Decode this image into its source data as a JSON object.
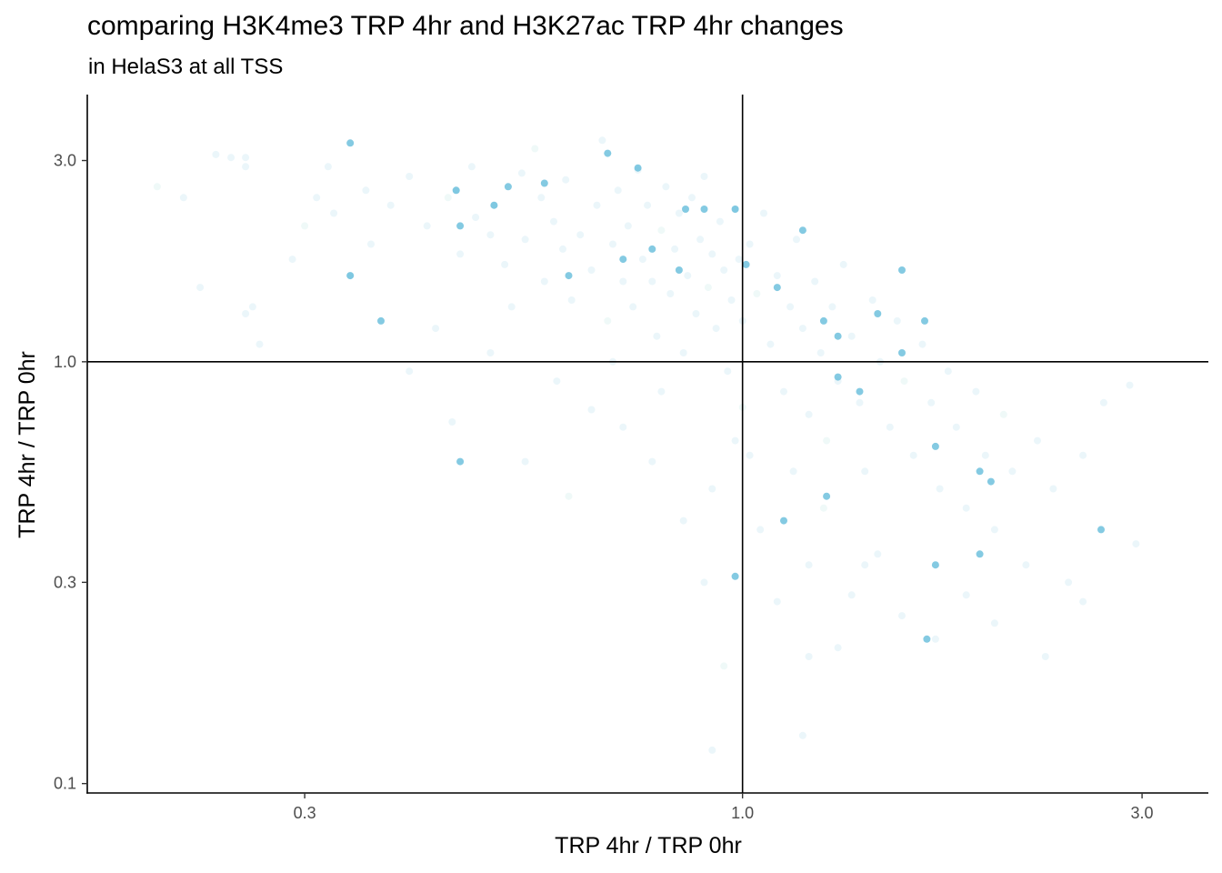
{
  "chart_data": {
    "type": "scatter",
    "title": "comparing H3K4me3 TRP 4hr and H3K27ac TRP 4hr changes",
    "subtitle": "in HelaS3 at all TSS",
    "xlabel": "TRP 4hr / TRP 0hr",
    "ylabel": "TRP 4hr / TRP 0hr",
    "x_scale": "log10",
    "y_scale": "log10",
    "xlim": [
      0.165,
      3.6
    ],
    "ylim": [
      0.095,
      4.3
    ],
    "x_ticks": [
      {
        "value": 0.3,
        "label": "0.3"
      },
      {
        "value": 1.0,
        "label": "1.0"
      },
      {
        "value": 3.0,
        "label": "3.0"
      }
    ],
    "y_ticks": [
      {
        "value": 0.1,
        "label": "0.1"
      },
      {
        "value": 0.3,
        "label": "0.3"
      },
      {
        "value": 1.0,
        "label": "1.0"
      },
      {
        "value": 3.0,
        "label": "3.0"
      }
    ],
    "reference_lines": {
      "x": 1.0,
      "y": 1.0
    },
    "point_color": "#5bb8d8",
    "point_color_alt": "#7fcfc4",
    "point_opacity": 0.12,
    "grid": false,
    "highlighted_points": [
      [
        0.69,
        3.12
      ],
      [
        0.75,
        2.88
      ],
      [
        0.855,
        2.3
      ],
      [
        0.9,
        2.3
      ],
      [
        0.98,
        2.3
      ],
      [
        0.46,
        2.1
      ],
      [
        0.525,
        2.6
      ],
      [
        1.18,
        2.05
      ],
      [
        0.78,
        1.85
      ],
      [
        0.72,
        1.75
      ],
      [
        0.84,
        1.65
      ],
      [
        1.01,
        1.7
      ],
      [
        1.1,
        1.5
      ],
      [
        1.55,
        1.65
      ],
      [
        1.45,
        1.3
      ],
      [
        1.65,
        1.25
      ],
      [
        1.25,
        1.25
      ],
      [
        1.3,
        1.15
      ],
      [
        1.55,
        1.05
      ],
      [
        1.3,
        0.92
      ],
      [
        1.38,
        0.85
      ],
      [
        0.37,
        1.25
      ],
      [
        1.7,
        0.63
      ],
      [
        1.98,
        0.52
      ],
      [
        1.12,
        0.42
      ],
      [
        1.7,
        0.33
      ],
      [
        1.92,
        0.35
      ],
      [
        1.92,
        0.55
      ],
      [
        0.34,
        1.6
      ],
      [
        0.455,
        2.55
      ],
      [
        0.58,
        2.65
      ],
      [
        0.62,
        1.6
      ],
      [
        0.505,
        2.35
      ],
      [
        0.46,
        0.58
      ],
      [
        1.26,
        0.48
      ],
      [
        0.98,
        0.31
      ],
      [
        2.68,
        0.4
      ],
      [
        1.66,
        0.22
      ],
      [
        0.34,
        3.3
      ]
    ],
    "points": [
      [
        0.2,
        2.6
      ],
      [
        0.215,
        2.45
      ],
      [
        0.235,
        3.1
      ],
      [
        0.245,
        3.05
      ],
      [
        0.255,
        2.9
      ],
      [
        0.26,
        1.35
      ],
      [
        0.255,
        3.05
      ],
      [
        0.265,
        1.1
      ],
      [
        0.255,
        1.3
      ],
      [
        0.225,
        1.5
      ],
      [
        0.29,
        1.75
      ],
      [
        0.3,
        2.1
      ],
      [
        0.31,
        2.45
      ],
      [
        0.32,
        2.9
      ],
      [
        0.325,
        2.25
      ],
      [
        0.34,
        1.6
      ],
      [
        0.355,
        2.55
      ],
      [
        0.36,
        1.9
      ],
      [
        0.38,
        2.35
      ],
      [
        0.4,
        2.75
      ],
      [
        0.42,
        2.1
      ],
      [
        0.43,
        1.2
      ],
      [
        0.445,
        2.45
      ],
      [
        0.455,
        2.55
      ],
      [
        0.46,
        1.8
      ],
      [
        0.475,
        2.9
      ],
      [
        0.48,
        2.2
      ],
      [
        0.5,
        2.0
      ],
      [
        0.505,
        2.35
      ],
      [
        0.52,
        1.7
      ],
      [
        0.53,
        1.35
      ],
      [
        0.545,
        2.8
      ],
      [
        0.55,
        1.95
      ],
      [
        0.565,
        3.2
      ],
      [
        0.575,
        2.45
      ],
      [
        0.58,
        1.55
      ],
      [
        0.595,
        2.15
      ],
      [
        0.61,
        1.85
      ],
      [
        0.615,
        2.7
      ],
      [
        0.625,
        1.4
      ],
      [
        0.64,
        2.0
      ],
      [
        0.66,
        1.65
      ],
      [
        0.67,
        2.35
      ],
      [
        0.68,
        3.35
      ],
      [
        0.69,
        1.25
      ],
      [
        0.7,
        1.9
      ],
      [
        0.71,
        2.55
      ],
      [
        0.72,
        1.55
      ],
      [
        0.73,
        2.1
      ],
      [
        0.74,
        1.35
      ],
      [
        0.75,
        2.85
      ],
      [
        0.76,
        1.75
      ],
      [
        0.77,
        2.35
      ],
      [
        0.78,
        1.55
      ],
      [
        0.79,
        1.15
      ],
      [
        0.8,
        2.05
      ],
      [
        0.81,
        2.6
      ],
      [
        0.82,
        1.45
      ],
      [
        0.83,
        1.85
      ],
      [
        0.84,
        2.25
      ],
      [
        0.85,
        1.05
      ],
      [
        0.86,
        1.6
      ],
      [
        0.87,
        2.45
      ],
      [
        0.88,
        1.3
      ],
      [
        0.89,
        1.95
      ],
      [
        0.9,
        2.75
      ],
      [
        0.91,
        1.5
      ],
      [
        0.92,
        1.8
      ],
      [
        0.93,
        1.2
      ],
      [
        0.94,
        2.15
      ],
      [
        0.95,
        1.65
      ],
      [
        0.96,
        0.95
      ],
      [
        0.97,
        1.4
      ],
      [
        0.98,
        2.3
      ],
      [
        0.99,
        1.75
      ],
      [
        1.0,
        1.25
      ],
      [
        1.02,
        1.9
      ],
      [
        1.04,
        1.45
      ],
      [
        1.06,
        2.25
      ],
      [
        1.08,
        1.1
      ],
      [
        1.1,
        1.6
      ],
      [
        1.12,
        0.85
      ],
      [
        1.14,
        1.35
      ],
      [
        1.16,
        1.95
      ],
      [
        1.18,
        1.2
      ],
      [
        1.2,
        0.75
      ],
      [
        1.22,
        1.55
      ],
      [
        1.24,
        1.05
      ],
      [
        1.26,
        0.65
      ],
      [
        1.28,
        1.35
      ],
      [
        1.3,
        0.9
      ],
      [
        1.32,
        1.7
      ],
      [
        1.35,
        1.15
      ],
      [
        1.38,
        0.8
      ],
      [
        1.4,
        0.55
      ],
      [
        1.43,
        1.4
      ],
      [
        1.46,
        1.0
      ],
      [
        1.5,
        0.7
      ],
      [
        1.53,
        1.25
      ],
      [
        1.56,
        0.9
      ],
      [
        1.6,
        0.6
      ],
      [
        1.64,
        1.1
      ],
      [
        1.68,
        0.8
      ],
      [
        1.72,
        0.5
      ],
      [
        1.76,
        0.95
      ],
      [
        1.8,
        0.7
      ],
      [
        1.85,
        0.45
      ],
      [
        1.9,
        0.85
      ],
      [
        1.95,
        0.6
      ],
      [
        2.0,
        0.4
      ],
      [
        2.05,
        0.75
      ],
      [
        2.1,
        0.55
      ],
      [
        2.18,
        0.33
      ],
      [
        2.25,
        0.65
      ],
      [
        2.35,
        0.5
      ],
      [
        2.45,
        0.3
      ],
      [
        2.55,
        0.6
      ],
      [
        2.7,
        0.8
      ],
      [
        2.9,
        0.88
      ],
      [
        2.95,
        0.37
      ],
      [
        0.55,
        0.58
      ],
      [
        0.62,
        0.48
      ],
      [
        0.72,
        0.7
      ],
      [
        0.78,
        0.58
      ],
      [
        0.85,
        0.42
      ],
      [
        0.9,
        0.3
      ],
      [
        0.92,
        0.5
      ],
      [
        0.98,
        0.65
      ],
      [
        1.05,
        0.4
      ],
      [
        1.1,
        0.27
      ],
      [
        1.15,
        0.55
      ],
      [
        1.2,
        0.33
      ],
      [
        1.25,
        0.45
      ],
      [
        1.3,
        0.21
      ],
      [
        1.35,
        0.28
      ],
      [
        1.45,
        0.35
      ],
      [
        1.55,
        0.25
      ],
      [
        1.7,
        0.22
      ],
      [
        1.85,
        0.28
      ],
      [
        2.0,
        0.24
      ],
      [
        2.3,
        0.2
      ],
      [
        0.92,
        0.12
      ],
      [
        1.18,
        0.13
      ],
      [
        0.95,
        0.19
      ],
      [
        1.2,
        0.2
      ],
      [
        1.4,
        0.33
      ],
      [
        2.55,
        0.27
      ],
      [
        0.45,
        0.72
      ],
      [
        0.4,
        0.95
      ],
      [
        0.5,
        1.05
      ],
      [
        0.6,
        0.9
      ],
      [
        0.66,
        0.77
      ],
      [
        0.7,
        1.0
      ],
      [
        0.8,
        0.85
      ],
      [
        1.0,
        0.78
      ],
      [
        1.02,
        0.6
      ]
    ]
  }
}
